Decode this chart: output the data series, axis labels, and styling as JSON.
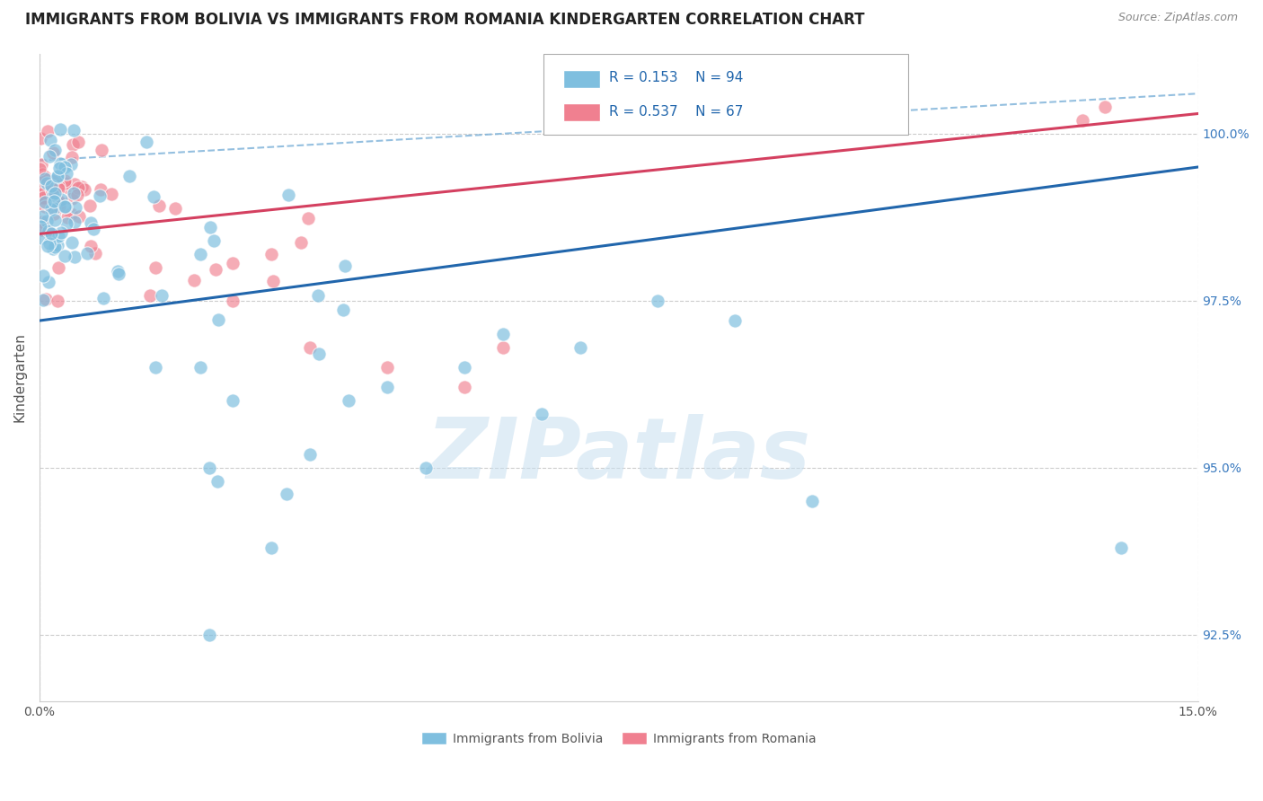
{
  "title": "IMMIGRANTS FROM BOLIVIA VS IMMIGRANTS FROM ROMANIA KINDERGARTEN CORRELATION CHART",
  "source": "Source: ZipAtlas.com",
  "ylabel": "Kindergarten",
  "y_ticks": [
    92.5,
    95.0,
    97.5,
    100.0
  ],
  "y_tick_labels": [
    "92.5%",
    "95.0%",
    "97.5%",
    "100.0%"
  ],
  "x_ticks": [
    0.0,
    15.0
  ],
  "x_tick_labels": [
    "0.0%",
    "15.0%"
  ],
  "xlim": [
    0.0,
    15.0
  ],
  "ylim": [
    91.5,
    101.2
  ],
  "bolivia_color": "#7fbfdf",
  "romania_color": "#f08090",
  "bolivia_R": 0.153,
  "bolivia_N": 94,
  "romania_R": 0.537,
  "romania_N": 67,
  "legend_label_bolivia": "Immigrants from Bolivia",
  "legend_label_romania": "Immigrants from Romania",
  "watermark": "ZIPatlas",
  "background_color": "#ffffff",
  "title_fontsize": 12,
  "axis_label_fontsize": 11,
  "tick_fontsize": 10,
  "bolivia_trend_color": "#2166ac",
  "romania_trend_color": "#d44060",
  "dashed_line_color": "#7ab0d8",
  "grid_color": "#cccccc"
}
